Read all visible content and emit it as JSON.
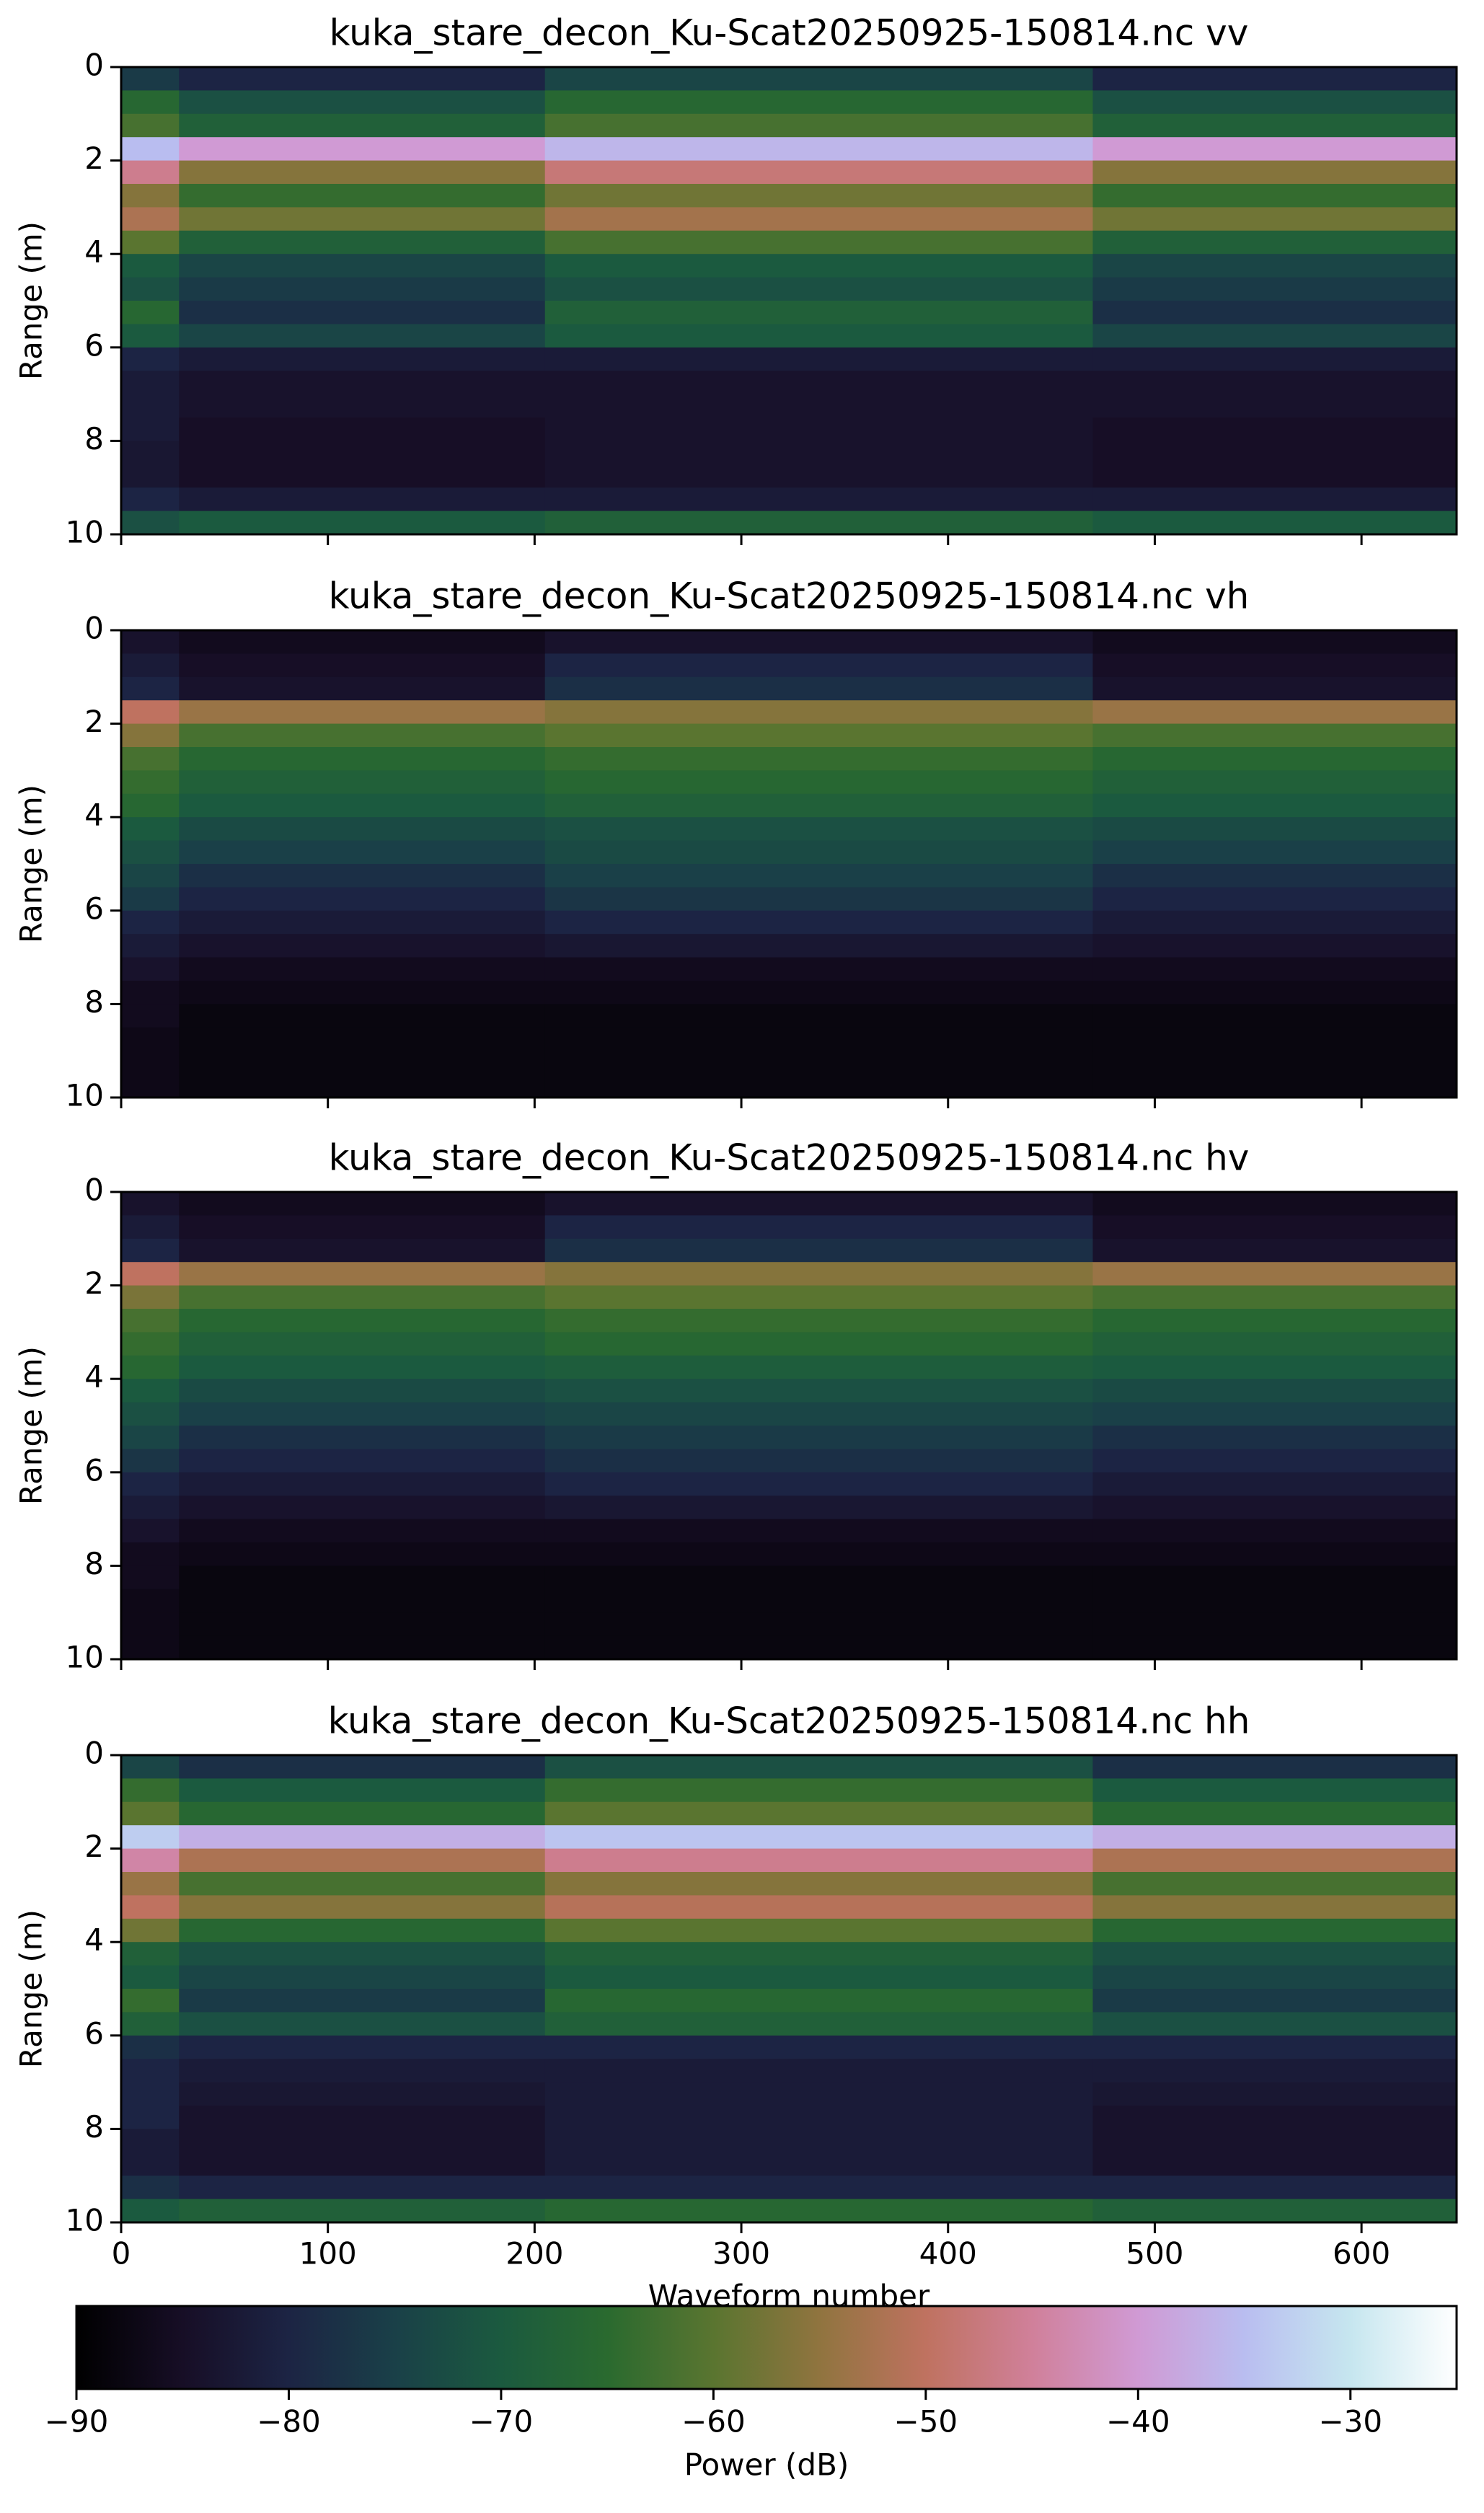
{
  "chart_data": [
    {
      "type": "heatmap",
      "title": "kuka_stare_decon_Ku-Scat20250925-150814.nc vv",
      "ylabel": "Range (m)",
      "x_edges": [
        0,
        28,
        205,
        470,
        646
      ],
      "y_edges": [
        0,
        0.5,
        1,
        1.5,
        2,
        2.5,
        3,
        3.5,
        4,
        4.5,
        5,
        5.5,
        6,
        6.5,
        7,
        7.5,
        8,
        8.5,
        9,
        9.5,
        10
      ],
      "xlim": [
        0,
        646
      ],
      "ylim": [
        10,
        0
      ],
      "xticks": [
        0,
        100,
        200,
        300,
        400,
        500,
        600
      ],
      "yticks": [
        0,
        2,
        4,
        6,
        8,
        10
      ],
      "z": [
        [
          -76,
          -80,
          -74,
          -80
        ],
        [
          -66,
          -72,
          -66,
          -72
        ],
        [
          -62,
          -68,
          -62,
          -68
        ],
        [
          -35,
          -40,
          -36,
          -40
        ],
        [
          -46,
          -56,
          -48,
          -56
        ],
        [
          -56,
          -64,
          -58,
          -64
        ],
        [
          -52,
          -58,
          -53,
          -58
        ],
        [
          -60,
          -68,
          -62,
          -68
        ],
        [
          -70,
          -74,
          -70,
          -74
        ],
        [
          -72,
          -76,
          -72,
          -76
        ],
        [
          -66,
          -78,
          -68,
          -78
        ],
        [
          -70,
          -74,
          -70,
          -74
        ],
        [
          -80,
          -82,
          -82,
          -82
        ],
        [
          -82,
          -84,
          -84,
          -84
        ],
        [
          -82,
          -84,
          -84,
          -84
        ],
        [
          -82,
          -85,
          -84,
          -85
        ],
        [
          -83,
          -85,
          -84,
          -85
        ],
        [
          -83,
          -85,
          -84,
          -85
        ],
        [
          -80,
          -82,
          -82,
          -82
        ],
        [
          -72,
          -70,
          -68,
          -70
        ]
      ]
    },
    {
      "type": "heatmap",
      "title": "kuka_stare_decon_Ku-Scat20250925-150814.nc vh",
      "ylabel": "Range (m)",
      "x_edges": [
        0,
        28,
        205,
        470,
        646
      ],
      "y_edges": [
        0,
        0.5,
        1,
        1.5,
        2,
        2.5,
        3,
        3.5,
        4,
        4.5,
        5,
        5.5,
        6,
        6.5,
        7,
        7.5,
        8,
        8.5,
        9,
        9.5,
        10
      ],
      "xlim": [
        0,
        646
      ],
      "ylim": [
        10,
        0
      ],
      "xticks": [
        0,
        100,
        200,
        300,
        400,
        500,
        600
      ],
      "yticks": [
        0,
        2,
        4,
        6,
        8,
        10
      ],
      "z": [
        [
          -84,
          -86,
          -84,
          -86
        ],
        [
          -82,
          -85,
          -80,
          -85
        ],
        [
          -80,
          -84,
          -78,
          -84
        ],
        [
          -50,
          -54,
          -56,
          -54
        ],
        [
          -56,
          -62,
          -60,
          -62
        ],
        [
          -62,
          -66,
          -64,
          -66
        ],
        [
          -64,
          -68,
          -66,
          -68
        ],
        [
          -66,
          -70,
          -68,
          -70
        ],
        [
          -70,
          -73,
          -72,
          -73
        ],
        [
          -72,
          -75,
          -73,
          -75
        ],
        [
          -74,
          -78,
          -75,
          -78
        ],
        [
          -76,
          -80,
          -77,
          -80
        ],
        [
          -80,
          -82,
          -80,
          -82
        ],
        [
          -82,
          -84,
          -83,
          -84
        ],
        [
          -84,
          -86,
          -86,
          -86
        ],
        [
          -86,
          -87,
          -87,
          -87
        ],
        [
          -86,
          -88,
          -88,
          -88
        ],
        [
          -87,
          -88,
          -88,
          -88
        ],
        [
          -87,
          -88,
          -88,
          -88
        ],
        [
          -87,
          -88,
          -88,
          -88
        ]
      ]
    },
    {
      "type": "heatmap",
      "title": "kuka_stare_decon_Ku-Scat20250925-150814.nc hv",
      "ylabel": "Range (m)",
      "x_edges": [
        0,
        28,
        205,
        470,
        646
      ],
      "y_edges": [
        0,
        0.5,
        1,
        1.5,
        2,
        2.5,
        3,
        3.5,
        4,
        4.5,
        5,
        5.5,
        6,
        6.5,
        7,
        7.5,
        8,
        8.5,
        9,
        9.5,
        10
      ],
      "xlim": [
        0,
        646
      ],
      "ylim": [
        10,
        0
      ],
      "xticks": [
        0,
        100,
        200,
        300,
        400,
        500,
        600
      ],
      "yticks": [
        0,
        2,
        4,
        6,
        8,
        10
      ],
      "z": [
        [
          -84,
          -86,
          -84,
          -86
        ],
        [
          -82,
          -85,
          -80,
          -85
        ],
        [
          -80,
          -84,
          -78,
          -84
        ],
        [
          -50,
          -54,
          -56,
          -54
        ],
        [
          -57,
          -62,
          -60,
          -62
        ],
        [
          -62,
          -66,
          -64,
          -66
        ],
        [
          -64,
          -68,
          -66,
          -68
        ],
        [
          -66,
          -70,
          -69,
          -70
        ],
        [
          -70,
          -73,
          -72,
          -73
        ],
        [
          -72,
          -75,
          -74,
          -75
        ],
        [
          -74,
          -78,
          -76,
          -78
        ],
        [
          -77,
          -80,
          -78,
          -80
        ],
        [
          -80,
          -82,
          -80,
          -82
        ],
        [
          -82,
          -84,
          -83,
          -84
        ],
        [
          -84,
          -86,
          -86,
          -86
        ],
        [
          -86,
          -87,
          -87,
          -87
        ],
        [
          -86,
          -88,
          -88,
          -88
        ],
        [
          -87,
          -88,
          -88,
          -88
        ],
        [
          -87,
          -88,
          -88,
          -88
        ],
        [
          -87,
          -88,
          -88,
          -88
        ]
      ]
    },
    {
      "type": "heatmap",
      "title": "kuka_stare_decon_Ku-Scat20250925-150814.nc hh",
      "ylabel": "Range (m)",
      "xlabel": "Waveform number",
      "x_edges": [
        0,
        28,
        205,
        470,
        646
      ],
      "y_edges": [
        0,
        0.5,
        1,
        1.5,
        2,
        2.5,
        3,
        3.5,
        4,
        4.5,
        5,
        5.5,
        6,
        6.5,
        7,
        7.5,
        8,
        8.5,
        9,
        9.5,
        10
      ],
      "xlim": [
        0,
        646
      ],
      "ylim": [
        10,
        0
      ],
      "xticks": [
        0,
        100,
        200,
        300,
        400,
        500,
        600
      ],
      "yticks": [
        0,
        2,
        4,
        6,
        8,
        10
      ],
      "xticklabels": true,
      "z": [
        [
          -74,
          -78,
          -72,
          -78
        ],
        [
          -64,
          -70,
          -64,
          -70
        ],
        [
          -60,
          -66,
          -60,
          -66
        ],
        [
          -33,
          -37,
          -34,
          -37
        ],
        [
          -44,
          -52,
          -46,
          -52
        ],
        [
          -54,
          -62,
          -56,
          -62
        ],
        [
          -50,
          -56,
          -51,
          -56
        ],
        [
          -58,
          -66,
          -60,
          -66
        ],
        [
          -68,
          -72,
          -68,
          -72
        ],
        [
          -70,
          -74,
          -70,
          -74
        ],
        [
          -64,
          -76,
          -66,
          -76
        ],
        [
          -68,
          -72,
          -68,
          -72
        ],
        [
          -78,
          -80,
          -80,
          -80
        ],
        [
          -80,
          -82,
          -82,
          -82
        ],
        [
          -80,
          -83,
          -82,
          -83
        ],
        [
          -80,
          -84,
          -82,
          -84
        ],
        [
          -82,
          -84,
          -82,
          -84
        ],
        [
          -82,
          -84,
          -82,
          -84
        ],
        [
          -78,
          -80,
          -80,
          -80
        ],
        [
          -70,
          -68,
          -66,
          -68
        ]
      ]
    },
    {
      "type": "colorbar",
      "label": "Power (dB)",
      "xlim": [
        -90,
        -25
      ],
      "xticks": [
        {
          "value": -90,
          "label": "−90"
        },
        {
          "value": -80,
          "label": "−80"
        },
        {
          "value": -70,
          "label": "−70"
        },
        {
          "value": -60,
          "label": "−60"
        },
        {
          "value": -50,
          "label": "−50"
        },
        {
          "value": -40,
          "label": "−40"
        },
        {
          "value": -30,
          "label": "−30"
        }
      ],
      "colors": [
        "#000000",
        "#170e26",
        "#1c2444",
        "#1a4048",
        "#1b5a3f",
        "#2a6a2f",
        "#5a7530",
        "#90743f",
        "#bf7260",
        "#d0809a",
        "#d09ad4",
        "#b9bdf0",
        "#c6e6ef",
        "#ffffff"
      ]
    }
  ]
}
